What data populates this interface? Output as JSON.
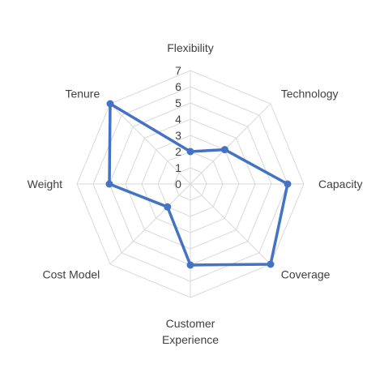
{
  "chart_data": {
    "type": "radar",
    "title": "",
    "categories": [
      "Flexibility",
      "Technology",
      "Capacity",
      "Coverage",
      "Customer Experience",
      "Cost Model",
      "Weight",
      "Tenure"
    ],
    "category_lines": [
      [
        "Flexibility"
      ],
      [
        "Technology"
      ],
      [
        "Capacity"
      ],
      [
        "Coverage"
      ],
      [
        "Customer",
        "Experience"
      ],
      [
        "Cost Model"
      ],
      [
        "Weight"
      ],
      [
        "Tenure"
      ]
    ],
    "ticks": [
      0,
      1,
      2,
      3,
      4,
      5,
      6,
      7
    ],
    "rlim": [
      0,
      7
    ],
    "grid": true,
    "legend": "none",
    "series": [
      {
        "values": [
          2,
          3,
          6,
          7,
          5,
          2,
          5,
          7
        ],
        "color": "#4472c4"
      }
    ],
    "grid_color": "#d9d9d9",
    "text_color": "#404040"
  }
}
